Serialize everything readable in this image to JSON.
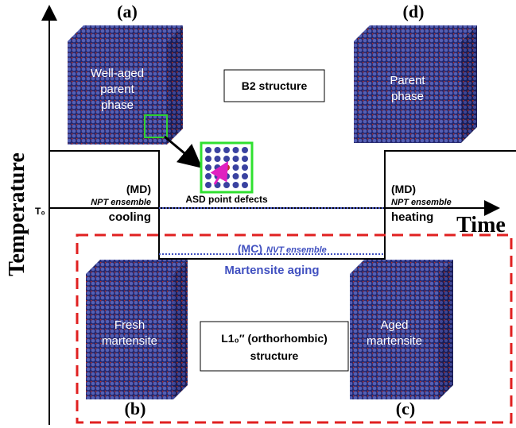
{
  "axes": {
    "y_label": "Temperature",
    "x_label": "Time",
    "t0": "T₀"
  },
  "panels": {
    "a": {
      "tag": "(a)",
      "lines": [
        "Well-aged",
        "parent",
        "phase"
      ]
    },
    "b": {
      "tag": "(b)",
      "lines": [
        "Fresh",
        "martensite"
      ]
    },
    "c": {
      "tag": "(c)",
      "lines": [
        "Aged",
        "martensite"
      ]
    },
    "d": {
      "tag": "(d)",
      "lines": [
        "Parent",
        "phase"
      ]
    }
  },
  "b2_box": "B2 structure",
  "l10_box": [
    "L1₀″ (orthorhombic)",
    "structure"
  ],
  "inset": "ASD point defects",
  "cooling": {
    "method": "(MD)",
    "ensemble": "NPT ensemble",
    "step": "cooling"
  },
  "heating": {
    "method": "(MD)",
    "ensemble": "NPT ensemble",
    "step": "heating"
  },
  "aging": {
    "method": "(MC)",
    "ensemble": "NVT ensemble",
    "step": "Martensite aging"
  }
}
